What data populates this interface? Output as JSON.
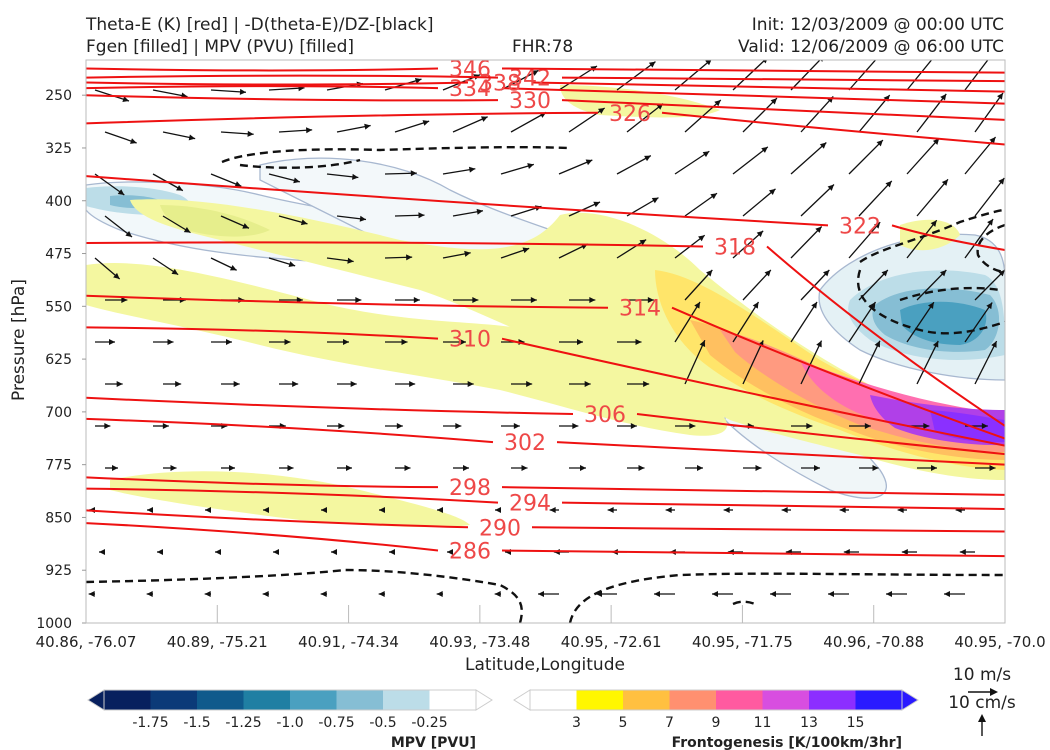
{
  "header": {
    "title_line1": "Theta-E (K) [red] | -D(theta-E)/DZ-[black]",
    "title_line2": "Fgen [filled] | MPV (PVU) [filled]",
    "fhr": "FHR:78",
    "init": "Init: 12/03/2009 @ 00:00 UTC",
    "valid": "Valid: 12/06/2009 @ 06:00 UTC"
  },
  "chart_data": {
    "type": "cross-section",
    "xlabel": "Latitude,Longitude",
    "ylabel": "Pressure [hPa]",
    "ylim": [
      1000,
      200
    ],
    "y_ticks": [
      250,
      325,
      400,
      475,
      550,
      625,
      700,
      775,
      850,
      925,
      1000
    ],
    "x_ticks": [
      "40.86, -76.07",
      "40.89, -75.21",
      "40.91, -74.34",
      "40.93, -73.48",
      "40.95, -72.61",
      "40.95, -71.75",
      "40.96, -70.88",
      "40.95, -70.0"
    ],
    "theta_e_contours": [
      {
        "label": "286",
        "p_left": 858,
        "p_label": 897,
        "p_right": 905
      },
      {
        "label": "290",
        "p_left": 840,
        "p_label": 864,
        "p_right": 870
      },
      {
        "label": "294",
        "p_left": 809,
        "p_label": 829,
        "p_right": 838
      },
      {
        "label": "298",
        "p_left": 793,
        "p_label": 807,
        "p_right": 818
      },
      {
        "label": "302",
        "p_left": 710,
        "p_label": 743,
        "p_right": 775
      },
      {
        "label": "306",
        "p_left": 680,
        "p_label": 703,
        "p_right": 760
      },
      {
        "label": "310",
        "p_left": 580,
        "p_label": 596,
        "p_right": 748
      },
      {
        "label": "314",
        "p_left": 535,
        "p_label": 552,
        "p_right": 738
      },
      {
        "label": "318",
        "p_left": 460,
        "p_label": 465,
        "p_right": 720
      },
      {
        "label": "322",
        "p_left": 365,
        "p_label": 435,
        "p_right": 470
      },
      {
        "label": "326",
        "p_left": 290,
        "p_label": 275,
        "p_right": 320
      },
      {
        "label": "330",
        "p_left": 250,
        "p_label": 257,
        "p_right": 285
      },
      {
        "label": "334",
        "p_left": 240,
        "p_label": 240,
        "p_right": 262
      },
      {
        "label": "338",
        "p_left": 232,
        "p_label": 232,
        "p_right": 245
      },
      {
        "label": "342",
        "p_left": 225,
        "p_label": 225,
        "p_right": 230
      },
      {
        "label": "346",
        "p_left": 212,
        "p_label": 212,
        "p_right": 218
      }
    ],
    "mpv_colorbar": {
      "label": "MPV [PVU]",
      "ticks": [
        "-1.75",
        "-1.5",
        "-1.25",
        "-1.0",
        "-0.75",
        "-0.5",
        "-0.25"
      ],
      "colors": [
        "#08205e",
        "#0b3a78",
        "#0f5a8c",
        "#1f7fa3",
        "#4aa0c0",
        "#86bed4",
        "#bcdde8",
        "#ffffff"
      ]
    },
    "fgen_colorbar": {
      "label": "Frontogenesis [K/100km/3hr]",
      "ticks": [
        "3",
        "5",
        "7",
        "9",
        "11",
        "13",
        "15"
      ],
      "colors": [
        "#ffffff",
        "#fff700",
        "#ffc040",
        "#ff9070",
        "#ff5aa0",
        "#d84ee0",
        "#8c2eff",
        "#2a1aff"
      ]
    },
    "wind_ref": {
      "horizontal": "10 m/s",
      "vertical": "10 cm/s"
    },
    "mpv_label": "-0.25",
    "fgen_fill_colors": {
      "light": "#f4f7a0",
      "mid": "#ffe56a",
      "orange": "#ffc060",
      "salmon": "#ff9a80",
      "pink": "#ff6fb0",
      "purple": "#b040e8",
      "violet": "#8a30ff"
    }
  }
}
